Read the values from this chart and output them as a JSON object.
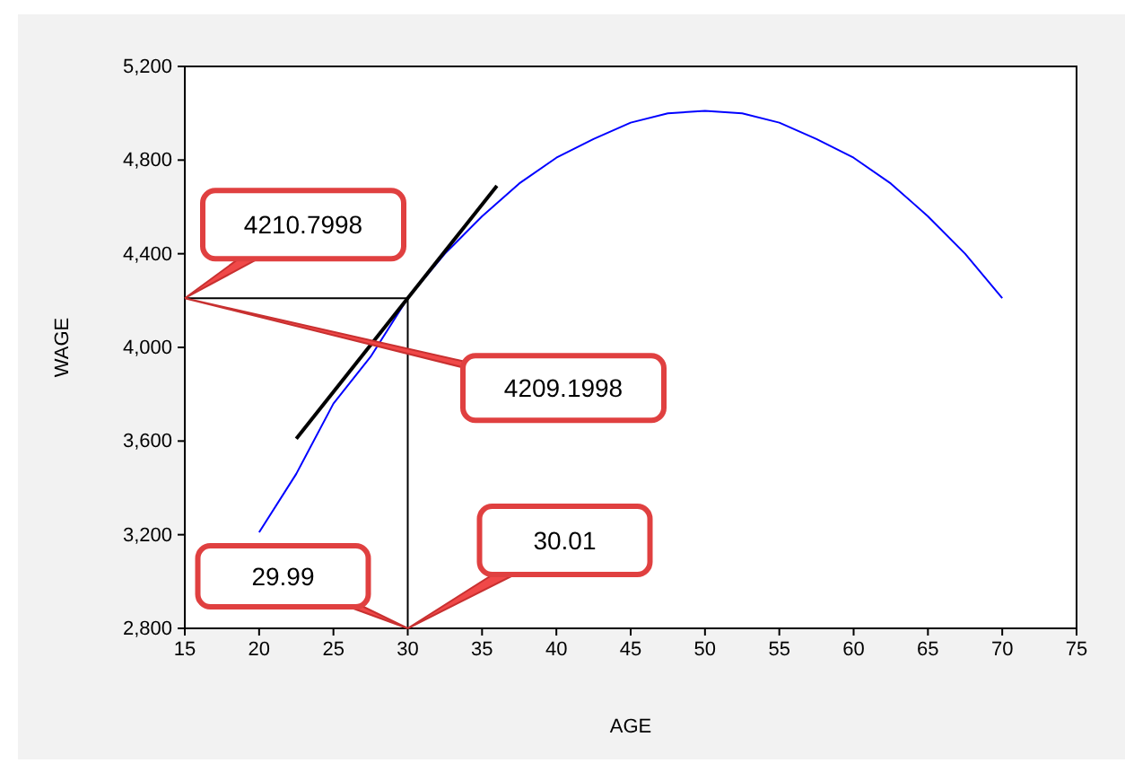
{
  "chart_data": {
    "type": "line",
    "xlabel": "AGE",
    "ylabel": "WAGE",
    "xlim": [
      15,
      75
    ],
    "xticks": [
      15,
      20,
      25,
      30,
      35,
      40,
      45,
      50,
      55,
      60,
      65,
      70,
      75
    ],
    "ylim": [
      2800,
      5200
    ],
    "yticks": [
      {
        "value": 2800,
        "label": "2,800"
      },
      {
        "value": 3200,
        "label": "3,200"
      },
      {
        "value": 3600,
        "label": "3,600"
      },
      {
        "value": 4000,
        "label": "4,000"
      },
      {
        "value": 4400,
        "label": "4,400"
      },
      {
        "value": 4800,
        "label": "4,800"
      },
      {
        "value": 5200,
        "label": "5,200"
      }
    ],
    "grid": false,
    "marker": "none",
    "series": [
      {
        "color": "#0000ff",
        "x": [
          20,
          22.5,
          25,
          27.5,
          30,
          32.5,
          35,
          37.5,
          40,
          42.5,
          45,
          47.5,
          50,
          52.5,
          55,
          57.5,
          60,
          62.5,
          65,
          67.5,
          70
        ],
        "values": [
          3210,
          3460,
          3760,
          3960,
          4210,
          4400,
          4560,
          4700,
          4810,
          4890,
          4960,
          5000,
          5010,
          5000,
          4960,
          4890,
          4810,
          4700,
          4560,
          4400,
          4210
        ]
      },
      {
        "color": "#000000",
        "x": [
          22.5,
          36
        ],
        "values": [
          3610,
          4690
        ]
      }
    ],
    "ref_lines": [
      {
        "axis": "x",
        "value": 30,
        "color": "#000000"
      },
      {
        "axis": "y",
        "value": 4210,
        "color": "#000000"
      }
    ],
    "annotations": [
      "4210.7998",
      "4209.1998",
      "29.99",
      "30.01"
    ]
  }
}
